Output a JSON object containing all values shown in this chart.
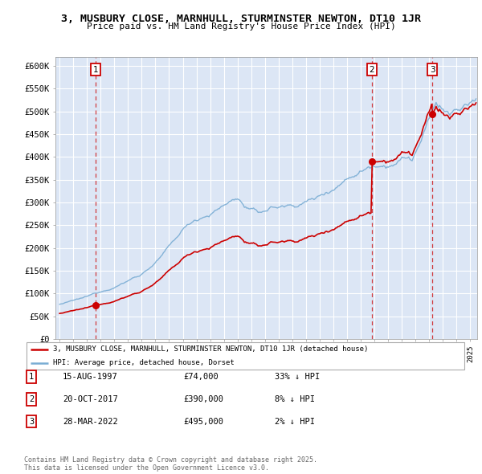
{
  "title": "3, MUSBURY CLOSE, MARNHULL, STURMINSTER NEWTON, DT10 1JR",
  "subtitle": "Price paid vs. HM Land Registry's House Price Index (HPI)",
  "legend_line1": "3, MUSBURY CLOSE, MARNHULL, STURMINSTER NEWTON, DT10 1JR (detached house)",
  "legend_line2": "HPI: Average price, detached house, Dorset",
  "sales": [
    {
      "num": 1,
      "date": "15-AUG-1997",
      "price": 74000,
      "label": "33% ↓ HPI",
      "year": 1997.62
    },
    {
      "num": 2,
      "date": "20-OCT-2017",
      "price": 390000,
      "label": "8% ↓ HPI",
      "year": 2017.8
    },
    {
      "num": 3,
      "date": "28-MAR-2022",
      "price": 495000,
      "label": "2% ↓ HPI",
      "year": 2022.23
    }
  ],
  "ylim": [
    0,
    620000
  ],
  "xlim_start": 1994.7,
  "xlim_end": 2025.5,
  "yticks": [
    0,
    50000,
    100000,
    150000,
    200000,
    250000,
    300000,
    350000,
    400000,
    450000,
    500000,
    550000,
    600000
  ],
  "ytick_labels": [
    "£0",
    "£50K",
    "£100K",
    "£150K",
    "£200K",
    "£250K",
    "£300K",
    "£350K",
    "£400K",
    "£450K",
    "£500K",
    "£550K",
    "£600K"
  ],
  "red_color": "#cc0000",
  "blue_color": "#7aadd4",
  "bg_color": "#dce6f5",
  "grid_color": "#ffffff",
  "footnote": "Contains HM Land Registry data © Crown copyright and database right 2025.\nThis data is licensed under the Open Government Licence v3.0."
}
